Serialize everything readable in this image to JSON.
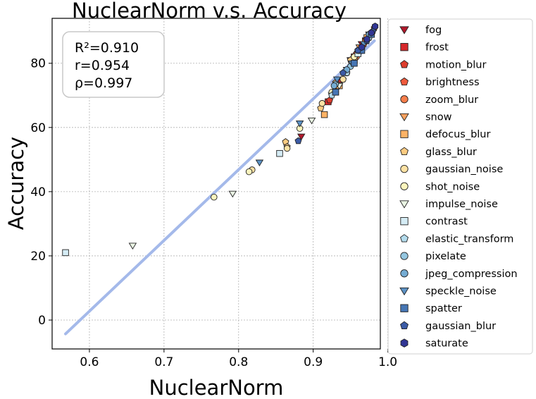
{
  "chart_data": {
    "type": "scatter",
    "title": "NuclearNorm  v.s.  Accuracy",
    "xlabel": "NuclearNorm",
    "ylabel": "Accuracy",
    "xlim": [
      0.55,
      0.99
    ],
    "ylim": [
      -9,
      94
    ],
    "xticks": [
      0.6,
      0.7,
      0.8,
      0.9,
      1.0
    ],
    "xtick_labels": [
      "0.6",
      "0.7",
      "0.8",
      "0.9",
      "1.0"
    ],
    "yticks": [
      0,
      20,
      40,
      60,
      80
    ],
    "ytick_labels": [
      "0",
      "20",
      "40",
      "60",
      "80"
    ],
    "grid": true,
    "legend_position": "outside-right",
    "stats": {
      "r2": "R²=0.910",
      "r": "r=0.954",
      "rho": "ρ=0.997"
    },
    "fit_line": {
      "x": [
        0.568,
        0.982
      ],
      "y": [
        -4.3,
        87.0
      ],
      "color": "#a4b9ea"
    },
    "series": [
      {
        "name": "fog",
        "marker": "triangle-down",
        "color": "#b2182b",
        "x": [
          0.884,
          0.93,
          0.95,
          0.965
        ],
        "y": [
          57.2,
          72,
          81,
          86
        ]
      },
      {
        "name": "frost",
        "marker": "square",
        "color": "#d6282b",
        "x": [
          0.92,
          0.935,
          0.955,
          0.97
        ],
        "y": [
          68,
          74,
          82,
          87
        ]
      },
      {
        "name": "motion_blur",
        "marker": "pentagon",
        "color": "#dd3d2d",
        "x": [
          0.922,
          0.94,
          0.958,
          0.975
        ],
        "y": [
          68.5,
          75,
          83,
          89
        ]
      },
      {
        "name": "brightness",
        "marker": "pentagon",
        "color": "#f05a3c",
        "x": [
          0.96,
          0.968,
          0.975,
          0.982
        ],
        "y": [
          84,
          86,
          88,
          91
        ]
      },
      {
        "name": "zoom_blur",
        "marker": "circle",
        "color": "#f67e4b",
        "x": [
          0.945,
          0.958,
          0.97,
          0.978
        ],
        "y": [
          77,
          82,
          87,
          89.5
        ]
      },
      {
        "name": "snow",
        "marker": "triangle-down",
        "color": "#f9a15e",
        "x": [
          0.925,
          0.945,
          0.962,
          0.975
        ],
        "y": [
          70,
          78,
          85,
          89
        ]
      },
      {
        "name": "defocus_blur",
        "marker": "square",
        "color": "#fdb366",
        "x": [
          0.915,
          0.935,
          0.955,
          0.972
        ],
        "y": [
          64,
          73,
          81,
          88
        ]
      },
      {
        "name": "glass_blur",
        "marker": "pentagon",
        "color": "#fdcb81",
        "x": [
          0.863,
          0.865,
          0.91,
          0.93,
          0.95
        ],
        "y": [
          55.5,
          54,
          66,
          74,
          81
        ]
      },
      {
        "name": "gaussian_noise",
        "marker": "circle",
        "color": "#fde2a4",
        "x": [
          0.818,
          0.865,
          0.912,
          0.94,
          0.965
        ],
        "y": [
          46.8,
          53.5,
          67.5,
          75,
          85
        ]
      },
      {
        "name": "shot_noise",
        "marker": "circle",
        "color": "#fcf5bd",
        "x": [
          0.767,
          0.814,
          0.882,
          0.925,
          0.955
        ],
        "y": [
          38.3,
          46.2,
          59.7,
          71,
          82
        ]
      },
      {
        "name": "impulse_noise",
        "marker": "triangle-down",
        "color": "#eaf5e4",
        "x": [
          0.658,
          0.792,
          0.898,
          0.935,
          0.96
        ],
        "y": [
          23.2,
          39.4,
          62.2,
          73,
          83
        ]
      },
      {
        "name": "contrast",
        "marker": "square",
        "color": "#d5ecf5",
        "x": [
          0.568,
          0.855,
          0.93,
          0.96
        ],
        "y": [
          21.0,
          51.9,
          71,
          83
        ]
      },
      {
        "name": "elastic_transform",
        "marker": "pentagon",
        "color": "#b3dbec",
        "x": [
          0.925,
          0.945,
          0.962,
          0.975
        ],
        "y": [
          70,
          77,
          84,
          88
        ]
      },
      {
        "name": "pixelate",
        "marker": "circle",
        "color": "#94c6e0",
        "x": [
          0.93,
          0.95,
          0.965,
          0.978
        ],
        "y": [
          73.5,
          79,
          85,
          89.5
        ]
      },
      {
        "name": "jpeg_compression",
        "marker": "circle",
        "color": "#75acd3",
        "x": [
          0.928,
          0.945,
          0.96,
          0.975
        ],
        "y": [
          73,
          78,
          84,
          89
        ]
      },
      {
        "name": "speckle_noise",
        "marker": "triangle-down",
        "color": "#5c92c5",
        "x": [
          0.828,
          0.882,
          0.932,
          0.952,
          0.968
        ],
        "y": [
          49.1,
          61.3,
          75,
          80,
          86
        ]
      },
      {
        "name": "spatter",
        "marker": "square",
        "color": "#4676b4",
        "x": [
          0.93,
          0.955,
          0.965,
          0.978
        ],
        "y": [
          71,
          80,
          84,
          89
        ]
      },
      {
        "name": "gaussian_blur",
        "marker": "pentagon",
        "color": "#3b5ba6",
        "x": [
          0.88,
          0.94,
          0.96,
          0.972,
          0.98
        ],
        "y": [
          55.8,
          77,
          84,
          87,
          90
        ]
      },
      {
        "name": "saturate",
        "marker": "hexagon",
        "color": "#313695",
        "x": [
          0.965,
          0.972,
          0.978,
          0.983
        ],
        "y": [
          85,
          87.5,
          89.5,
          91.5
        ]
      }
    ]
  }
}
